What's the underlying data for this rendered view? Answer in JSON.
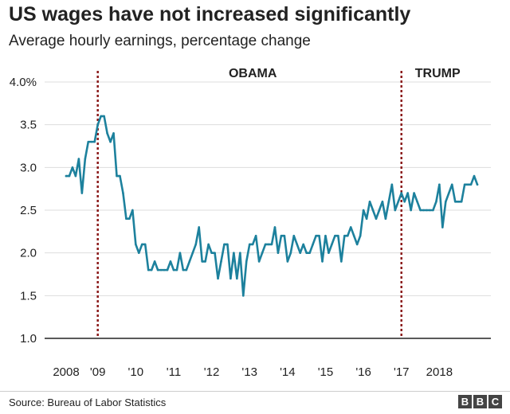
{
  "header": {
    "title": "US wages have not increased significantly",
    "subtitle": "Average hourly earnings, percentage change"
  },
  "footer": {
    "source": "Source: Bureau of Labor Statistics",
    "logo_letters": [
      "B",
      "B",
      "C"
    ]
  },
  "colors": {
    "line": "#1d819d",
    "marker": "#8b1a1a",
    "axis": "#222222",
    "grid": "#dddddd"
  },
  "chart_data": {
    "type": "line",
    "title": "US wages have not increased significantly",
    "subtitle": "Average hourly earnings, percentage change",
    "xlabel": "",
    "ylabel": "",
    "ylim": [
      1.0,
      4.0
    ],
    "grid": true,
    "yticks": [
      {
        "value": 4.0,
        "label": "4.0%"
      },
      {
        "value": 3.5,
        "label": "3.5"
      },
      {
        "value": 3.0,
        "label": "3.0"
      },
      {
        "value": 2.5,
        "label": "2.5"
      },
      {
        "value": 2.0,
        "label": "2.0"
      },
      {
        "value": 1.5,
        "label": "1.5"
      },
      {
        "value": 1.0,
        "label": "1.0"
      }
    ],
    "xticks": [
      {
        "date": "2008-03",
        "label": "2008"
      },
      {
        "date": "2009-01",
        "label": "'09"
      },
      {
        "date": "2010-01",
        "label": "'10"
      },
      {
        "date": "2011-01",
        "label": "'11"
      },
      {
        "date": "2012-01",
        "label": "'12"
      },
      {
        "date": "2013-01",
        "label": "'13"
      },
      {
        "date": "2014-01",
        "label": "'14"
      },
      {
        "date": "2015-01",
        "label": "'15"
      },
      {
        "date": "2016-01",
        "label": "'16"
      },
      {
        "date": "2017-01",
        "label": "'17"
      },
      {
        "date": "2018-01",
        "label": "2018"
      }
    ],
    "annotations": [
      {
        "date": "2009-01",
        "label": ""
      },
      {
        "date": "2017-01",
        "label": "TRUMP"
      }
    ],
    "period_label": {
      "text": "OBAMA",
      "date": "2013-02"
    },
    "series": [
      {
        "points": [
          [
            "2008-03",
            2.9
          ],
          [
            "2008-04",
            2.9
          ],
          [
            "2008-05",
            3.0
          ],
          [
            "2008-06",
            2.9
          ],
          [
            "2008-07",
            3.1
          ],
          [
            "2008-08",
            2.7
          ],
          [
            "2008-09",
            3.1
          ],
          [
            "2008-10",
            3.3
          ],
          [
            "2008-11",
            3.3
          ],
          [
            "2008-12",
            3.3
          ],
          [
            "2009-01",
            3.5
          ],
          [
            "2009-02",
            3.6
          ],
          [
            "2009-03",
            3.6
          ],
          [
            "2009-04",
            3.4
          ],
          [
            "2009-05",
            3.3
          ],
          [
            "2009-06",
            3.4
          ],
          [
            "2009-07",
            2.9
          ],
          [
            "2009-08",
            2.9
          ],
          [
            "2009-09",
            2.7
          ],
          [
            "2009-10",
            2.4
          ],
          [
            "2009-11",
            2.4
          ],
          [
            "2009-12",
            2.5
          ],
          [
            "2010-01",
            2.1
          ],
          [
            "2010-02",
            2.0
          ],
          [
            "2010-03",
            2.1
          ],
          [
            "2010-04",
            2.1
          ],
          [
            "2010-05",
            1.8
          ],
          [
            "2010-06",
            1.8
          ],
          [
            "2010-07",
            1.9
          ],
          [
            "2010-08",
            1.8
          ],
          [
            "2010-09",
            1.8
          ],
          [
            "2010-10",
            1.8
          ],
          [
            "2010-11",
            1.8
          ],
          [
            "2010-12",
            1.9
          ],
          [
            "2011-01",
            1.8
          ],
          [
            "2011-02",
            1.8
          ],
          [
            "2011-03",
            2.0
          ],
          [
            "2011-04",
            1.8
          ],
          [
            "2011-05",
            1.8
          ],
          [
            "2011-06",
            1.9
          ],
          [
            "2011-07",
            2.0
          ],
          [
            "2011-08",
            2.1
          ],
          [
            "2011-09",
            2.3
          ],
          [
            "2011-10",
            1.9
          ],
          [
            "2011-11",
            1.9
          ],
          [
            "2011-12",
            2.1
          ],
          [
            "2012-01",
            2.0
          ],
          [
            "2012-02",
            2.0
          ],
          [
            "2012-03",
            1.7
          ],
          [
            "2012-04",
            1.9
          ],
          [
            "2012-05",
            2.1
          ],
          [
            "2012-06",
            2.1
          ],
          [
            "2012-07",
            1.7
          ],
          [
            "2012-08",
            2.0
          ],
          [
            "2012-09",
            1.7
          ],
          [
            "2012-10",
            2.0
          ],
          [
            "2012-11",
            1.5
          ],
          [
            "2012-12",
            1.9
          ],
          [
            "2013-01",
            2.1
          ],
          [
            "2013-02",
            2.1
          ],
          [
            "2013-03",
            2.2
          ],
          [
            "2013-04",
            1.9
          ],
          [
            "2013-05",
            2.0
          ],
          [
            "2013-06",
            2.1
          ],
          [
            "2013-07",
            2.1
          ],
          [
            "2013-08",
            2.1
          ],
          [
            "2013-09",
            2.3
          ],
          [
            "2013-10",
            2.0
          ],
          [
            "2013-11",
            2.2
          ],
          [
            "2013-12",
            2.2
          ],
          [
            "2014-01",
            1.9
          ],
          [
            "2014-02",
            2.0
          ],
          [
            "2014-03",
            2.2
          ],
          [
            "2014-04",
            2.1
          ],
          [
            "2014-05",
            2.0
          ],
          [
            "2014-06",
            2.1
          ],
          [
            "2014-07",
            2.0
          ],
          [
            "2014-08",
            2.0
          ],
          [
            "2014-09",
            2.1
          ],
          [
            "2014-10",
            2.2
          ],
          [
            "2014-11",
            2.2
          ],
          [
            "2014-12",
            1.9
          ],
          [
            "2015-01",
            2.2
          ],
          [
            "2015-02",
            2.0
          ],
          [
            "2015-03",
            2.1
          ],
          [
            "2015-04",
            2.2
          ],
          [
            "2015-05",
            2.2
          ],
          [
            "2015-06",
            1.9
          ],
          [
            "2015-07",
            2.2
          ],
          [
            "2015-08",
            2.2
          ],
          [
            "2015-09",
            2.3
          ],
          [
            "2015-10",
            2.2
          ],
          [
            "2015-11",
            2.1
          ],
          [
            "2015-12",
            2.2
          ],
          [
            "2016-01",
            2.5
          ],
          [
            "2016-02",
            2.4
          ],
          [
            "2016-03",
            2.6
          ],
          [
            "2016-04",
            2.5
          ],
          [
            "2016-05",
            2.4
          ],
          [
            "2016-06",
            2.5
          ],
          [
            "2016-07",
            2.6
          ],
          [
            "2016-08",
            2.4
          ],
          [
            "2016-09",
            2.6
          ],
          [
            "2016-10",
            2.8
          ],
          [
            "2016-11",
            2.5
          ],
          [
            "2016-12",
            2.6
          ],
          [
            "2017-01",
            2.7
          ],
          [
            "2017-02",
            2.6
          ],
          [
            "2017-03",
            2.7
          ],
          [
            "2017-04",
            2.5
          ],
          [
            "2017-05",
            2.7
          ],
          [
            "2017-06",
            2.6
          ],
          [
            "2017-07",
            2.5
          ],
          [
            "2017-08",
            2.5
          ],
          [
            "2017-09",
            2.5
          ],
          [
            "2017-10",
            2.5
          ],
          [
            "2017-11",
            2.5
          ],
          [
            "2017-12",
            2.6
          ],
          [
            "2018-01",
            2.8
          ],
          [
            "2018-02",
            2.3
          ],
          [
            "2018-03",
            2.6
          ],
          [
            "2018-04",
            2.7
          ],
          [
            "2018-05",
            2.8
          ],
          [
            "2018-06",
            2.6
          ],
          [
            "2018-07",
            2.6
          ],
          [
            "2018-08",
            2.6
          ],
          [
            "2018-09",
            2.8
          ],
          [
            "2018-10",
            2.8
          ],
          [
            "2018-11",
            2.8
          ],
          [
            "2018-12",
            2.9
          ],
          [
            "2019-01",
            2.8
          ]
        ]
      }
    ]
  }
}
